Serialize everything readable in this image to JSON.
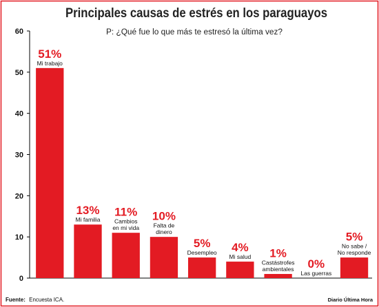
{
  "chart_data": {
    "type": "bar",
    "title": "Principales causas de estrés en los paraguayos",
    "subtitle": "P: ¿Qué fue lo que más te estresó la última vez?",
    "categories": [
      [
        "Mi trabajo"
      ],
      [
        "Mi familia"
      ],
      [
        "Cambios",
        "en mi vida"
      ],
      [
        "Falta de",
        "dinero"
      ],
      [
        "Desempleo"
      ],
      [
        "Mi salud"
      ],
      [
        "Castástrofes",
        "ambientales"
      ],
      [
        "Las guerras"
      ],
      [
        "No sabe /",
        "No responde"
      ]
    ],
    "values": [
      51,
      13,
      11,
      10,
      5,
      4,
      1,
      0,
      5
    ],
    "value_labels": [
      "51%",
      "13%",
      "11%",
      "10%",
      "5%",
      "4%",
      "1%",
      "0%",
      "5%"
    ],
    "ylim": [
      0,
      60
    ],
    "yticks": [
      0,
      10,
      20,
      30,
      40,
      50,
      60
    ],
    "grid": false,
    "bar_color": "#e31b23",
    "frame_color": "#e31b23"
  },
  "footer": {
    "source_label": "Fuente:",
    "source_text": "Encuesta ICA.",
    "credit": "Diario Última Hora"
  }
}
